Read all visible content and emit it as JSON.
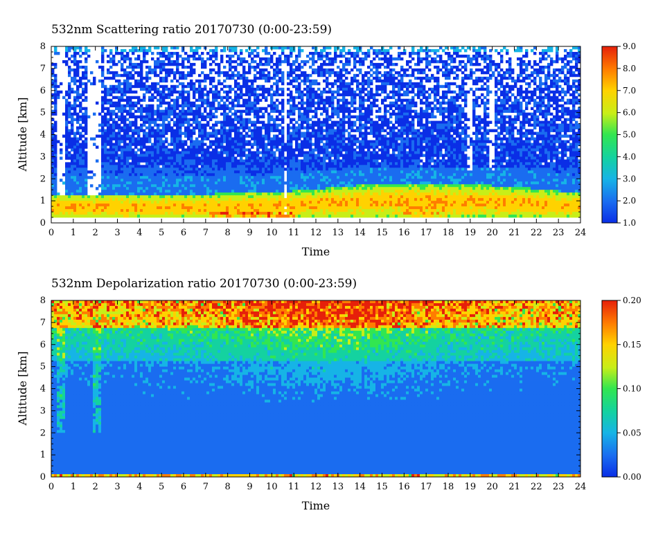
{
  "chart_data": [
    {
      "type": "heatmap",
      "title": "532nm Scattering ratio  20170730 (0:00-23:59)",
      "xlabel": "Time",
      "ylabel": "Altitude [km]",
      "xlim": [
        0,
        24
      ],
      "ylim": [
        0,
        8
      ],
      "x_ticks": [
        "0",
        "1",
        "2",
        "3",
        "4",
        "5",
        "6",
        "7",
        "8",
        "9",
        "10",
        "11",
        "12",
        "13",
        "14",
        "15",
        "16",
        "17",
        "18",
        "19",
        "20",
        "21",
        "22",
        "23",
        "24"
      ],
      "y_ticks": [
        "0",
        "1",
        "2",
        "3",
        "4",
        "5",
        "6",
        "7",
        "8"
      ],
      "colorbar": {
        "range": [
          1.0,
          9.0
        ],
        "ticks": [
          "1.0",
          "2.0",
          "3.0",
          "4.0",
          "5.0",
          "6.0",
          "7.0",
          "8.0",
          "9.0"
        ]
      },
      "features": {
        "aerosol_layer_top_km": 1.5,
        "cloud_gaps_hours": [
          [
            0.2,
            0.6
          ],
          [
            1.6,
            2.2
          ],
          [
            10.5,
            10.7
          ],
          [
            18.8,
            19.1
          ],
          [
            19.8,
            20.1
          ]
        ]
      }
    },
    {
      "type": "heatmap",
      "title": "532nm Depolarization ratio  20170730 (0:00-23:59)",
      "xlabel": "Time",
      "ylabel": "Altitude [km]",
      "xlim": [
        0,
        24
      ],
      "ylim": [
        0,
        8
      ],
      "x_ticks": [
        "0",
        "1",
        "2",
        "3",
        "4",
        "5",
        "6",
        "7",
        "8",
        "9",
        "10",
        "11",
        "12",
        "13",
        "14",
        "15",
        "16",
        "17",
        "18",
        "19",
        "20",
        "21",
        "22",
        "23",
        "24"
      ],
      "y_ticks": [
        "0",
        "1",
        "2",
        "3",
        "4",
        "5",
        "6",
        "7",
        "8"
      ],
      "colorbar": {
        "range": [
          0.0,
          0.2
        ],
        "ticks": [
          "0.00",
          "0.05",
          "0.10",
          "0.15",
          "0.20"
        ]
      }
    }
  ],
  "colors": {
    "scale": [
      "#0a2ee6",
      "#1a6cf0",
      "#16b4e6",
      "#14d2a0",
      "#32e650",
      "#c8ee18",
      "#ffd200",
      "#ff7d00",
      "#e6200a"
    ]
  }
}
